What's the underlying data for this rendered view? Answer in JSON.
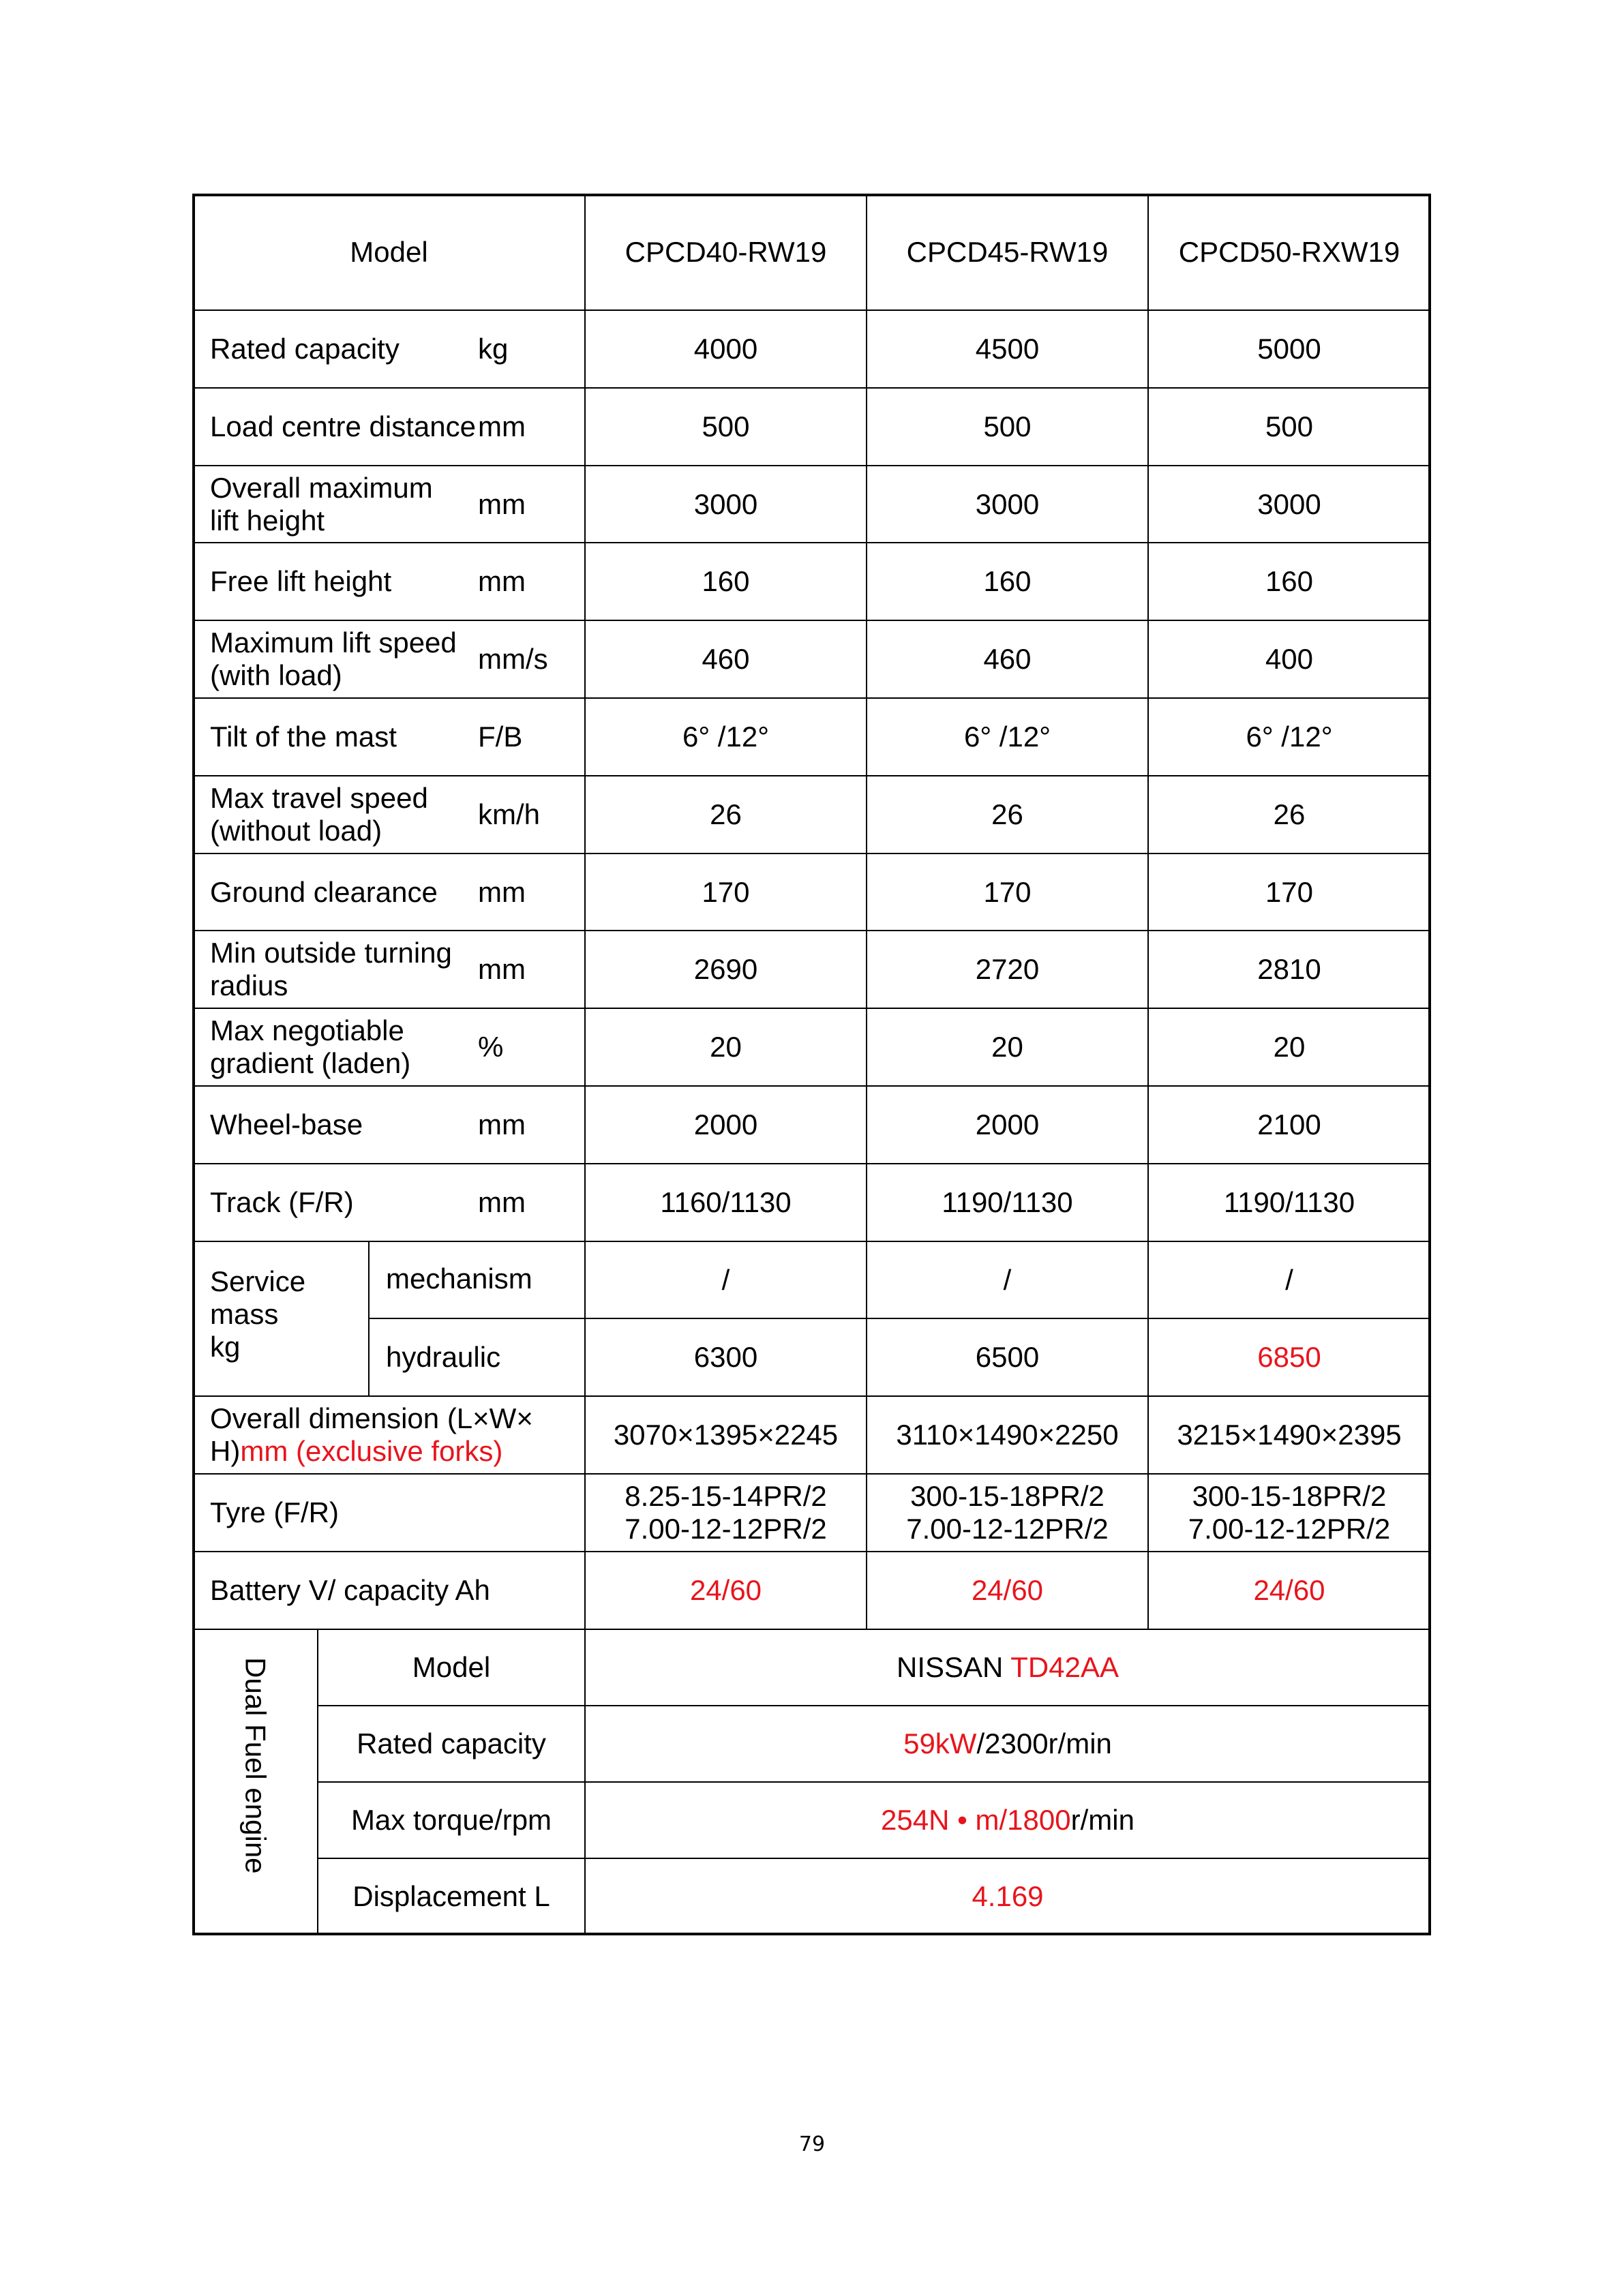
{
  "header": {
    "model_label": "Model",
    "models": [
      "CPCD40-RW19",
      "CPCD45-RW19",
      "CPCD50-RXW19"
    ]
  },
  "rows": [
    {
      "label": "Rated capacity",
      "unit": "kg",
      "values": [
        "4000",
        "4500",
        "5000"
      ]
    },
    {
      "label": "Load centre distance",
      "unit": "mm",
      "values": [
        "500",
        "500",
        "500"
      ]
    },
    {
      "label": "Overall maximum\nlift height",
      "unit": "mm",
      "values": [
        "3000",
        "3000",
        "3000"
      ]
    },
    {
      "label": "Free lift height",
      "unit": "mm",
      "values": [
        "160",
        "160",
        "160"
      ]
    },
    {
      "label": "Maximum lift speed\n(with load)",
      "unit": "mm/s",
      "values": [
        "460",
        "460",
        "400"
      ]
    },
    {
      "label": "Tilt of the mast",
      "unit": "F/B",
      "values": [
        "6°  /12°",
        "6°  /12°",
        "6°  /12°"
      ]
    },
    {
      "label": "Max travel speed\n(without load)",
      "unit": "km/h",
      "values": [
        "26",
        "26",
        "26"
      ]
    },
    {
      "label": "Ground clearance",
      "unit": "mm",
      "values": [
        "170",
        "170",
        "170"
      ]
    },
    {
      "label": "Min outside turning\nradius",
      "unit": "mm",
      "values": [
        "2690",
        "2720",
        "2810"
      ]
    },
    {
      "label": "Max negotiable\ngradient (laden)",
      "unit": "%",
      "values": [
        "20",
        "20",
        "20"
      ]
    },
    {
      "label": "Wheel-base",
      "unit": "mm",
      "values": [
        "2000",
        "2000",
        "2100"
      ]
    },
    {
      "label": "Track (F/R)",
      "unit": "mm",
      "values": [
        "1160/1130",
        "1190/1130",
        "1190/1130"
      ]
    }
  ],
  "service_mass": {
    "label": "Service\nmass\nkg",
    "rows": [
      {
        "label": "mechanism",
        "values": [
          "/",
          "/",
          "/"
        ],
        "red": [
          false,
          false,
          false
        ]
      },
      {
        "label": "hydraulic",
        "values": [
          "6300",
          "6500",
          "6850"
        ],
        "red": [
          false,
          false,
          true
        ]
      }
    ]
  },
  "overall_dimension": {
    "label": "Overall dimension (L×W×\nH)",
    "label_red": "mm (exclusive forks)",
    "values": [
      "3070×1395×2245",
      "3110×1490×2250",
      "3215×1490×2395"
    ]
  },
  "tyre": {
    "label": "Tyre (F/R)",
    "values": [
      "8.25-15-14PR/2\n7.00-12-12PR/2",
      "300-15-18PR/2\n7.00-12-12PR/2",
      "300-15-18PR/2\n7.00-12-12PR/2"
    ]
  },
  "battery": {
    "label": "Battery V/ capacity Ah",
    "values": [
      "24/60",
      "24/60",
      "24/60"
    ],
    "red": [
      true,
      true,
      true
    ]
  },
  "engine": {
    "label": "Dual Fuel engine",
    "rows": [
      {
        "label": "Model",
        "parts": [
          {
            "text": "NISSAN ",
            "red": false
          },
          {
            "text": "TD42AA",
            "red": true
          }
        ]
      },
      {
        "label": "Rated capacity",
        "parts": [
          {
            "text": "59kW",
            "red": true
          },
          {
            "text": "/2300r/min",
            "red": false
          }
        ]
      },
      {
        "label": "Max torque/rpm",
        "parts": [
          {
            "text": "254N • m/1800",
            "red": true
          },
          {
            "text": "r/min",
            "red": false
          }
        ]
      },
      {
        "label": "Displacement L",
        "parts": [
          {
            "text": "4.169",
            "red": true
          }
        ]
      }
    ]
  },
  "page_number": "79",
  "colors": {
    "highlight": "#e8141c",
    "text": "#000000"
  }
}
